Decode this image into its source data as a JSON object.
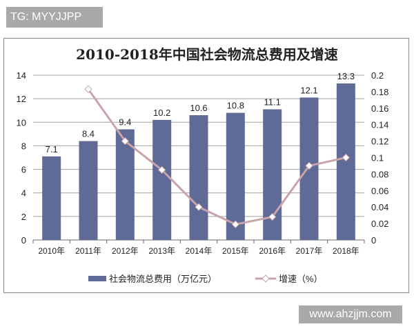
{
  "tag": "TG: MYYJJPP",
  "watermark": "www.ahzjjm.com",
  "chart_data": {
    "type": "bar+line",
    "title": "2010-2018年中国社会物流总费用及增速",
    "categories": [
      "2010年",
      "2011年",
      "2012年",
      "2013年",
      "2014年",
      "2015年",
      "2016年",
      "2017年",
      "2018年"
    ],
    "series": [
      {
        "name": "社会物流总费用（万亿元）",
        "type": "bar",
        "axis": "left",
        "color": "#5f6b96",
        "values": [
          7.1,
          8.4,
          9.4,
          10.2,
          10.6,
          10.8,
          11.1,
          12.1,
          13.3
        ],
        "labels": [
          "7.1",
          "8.4",
          "9.4",
          "10.2",
          "10.6",
          "10.8",
          "11.1",
          "12.1",
          "13.3"
        ]
      },
      {
        "name": "增速（%）",
        "type": "line",
        "axis": "right",
        "color": "#c9a2aa",
        "values": [
          null,
          0.183,
          0.12,
          0.085,
          0.04,
          0.019,
          0.028,
          0.09,
          0.1
        ]
      }
    ],
    "y_left": {
      "ylim": [
        0,
        14
      ],
      "ticks": [
        "0",
        "2",
        "4",
        "6",
        "8",
        "10",
        "12",
        "14"
      ]
    },
    "y_right": {
      "ylim": [
        0,
        0.2
      ],
      "ticks": [
        "0",
        "0.02",
        "0.04",
        "0.06",
        "0.08",
        "0.1",
        "0.12",
        "0.14",
        "0.16",
        "0.18",
        "0.2"
      ]
    },
    "grid": true,
    "legend": "bottom"
  }
}
